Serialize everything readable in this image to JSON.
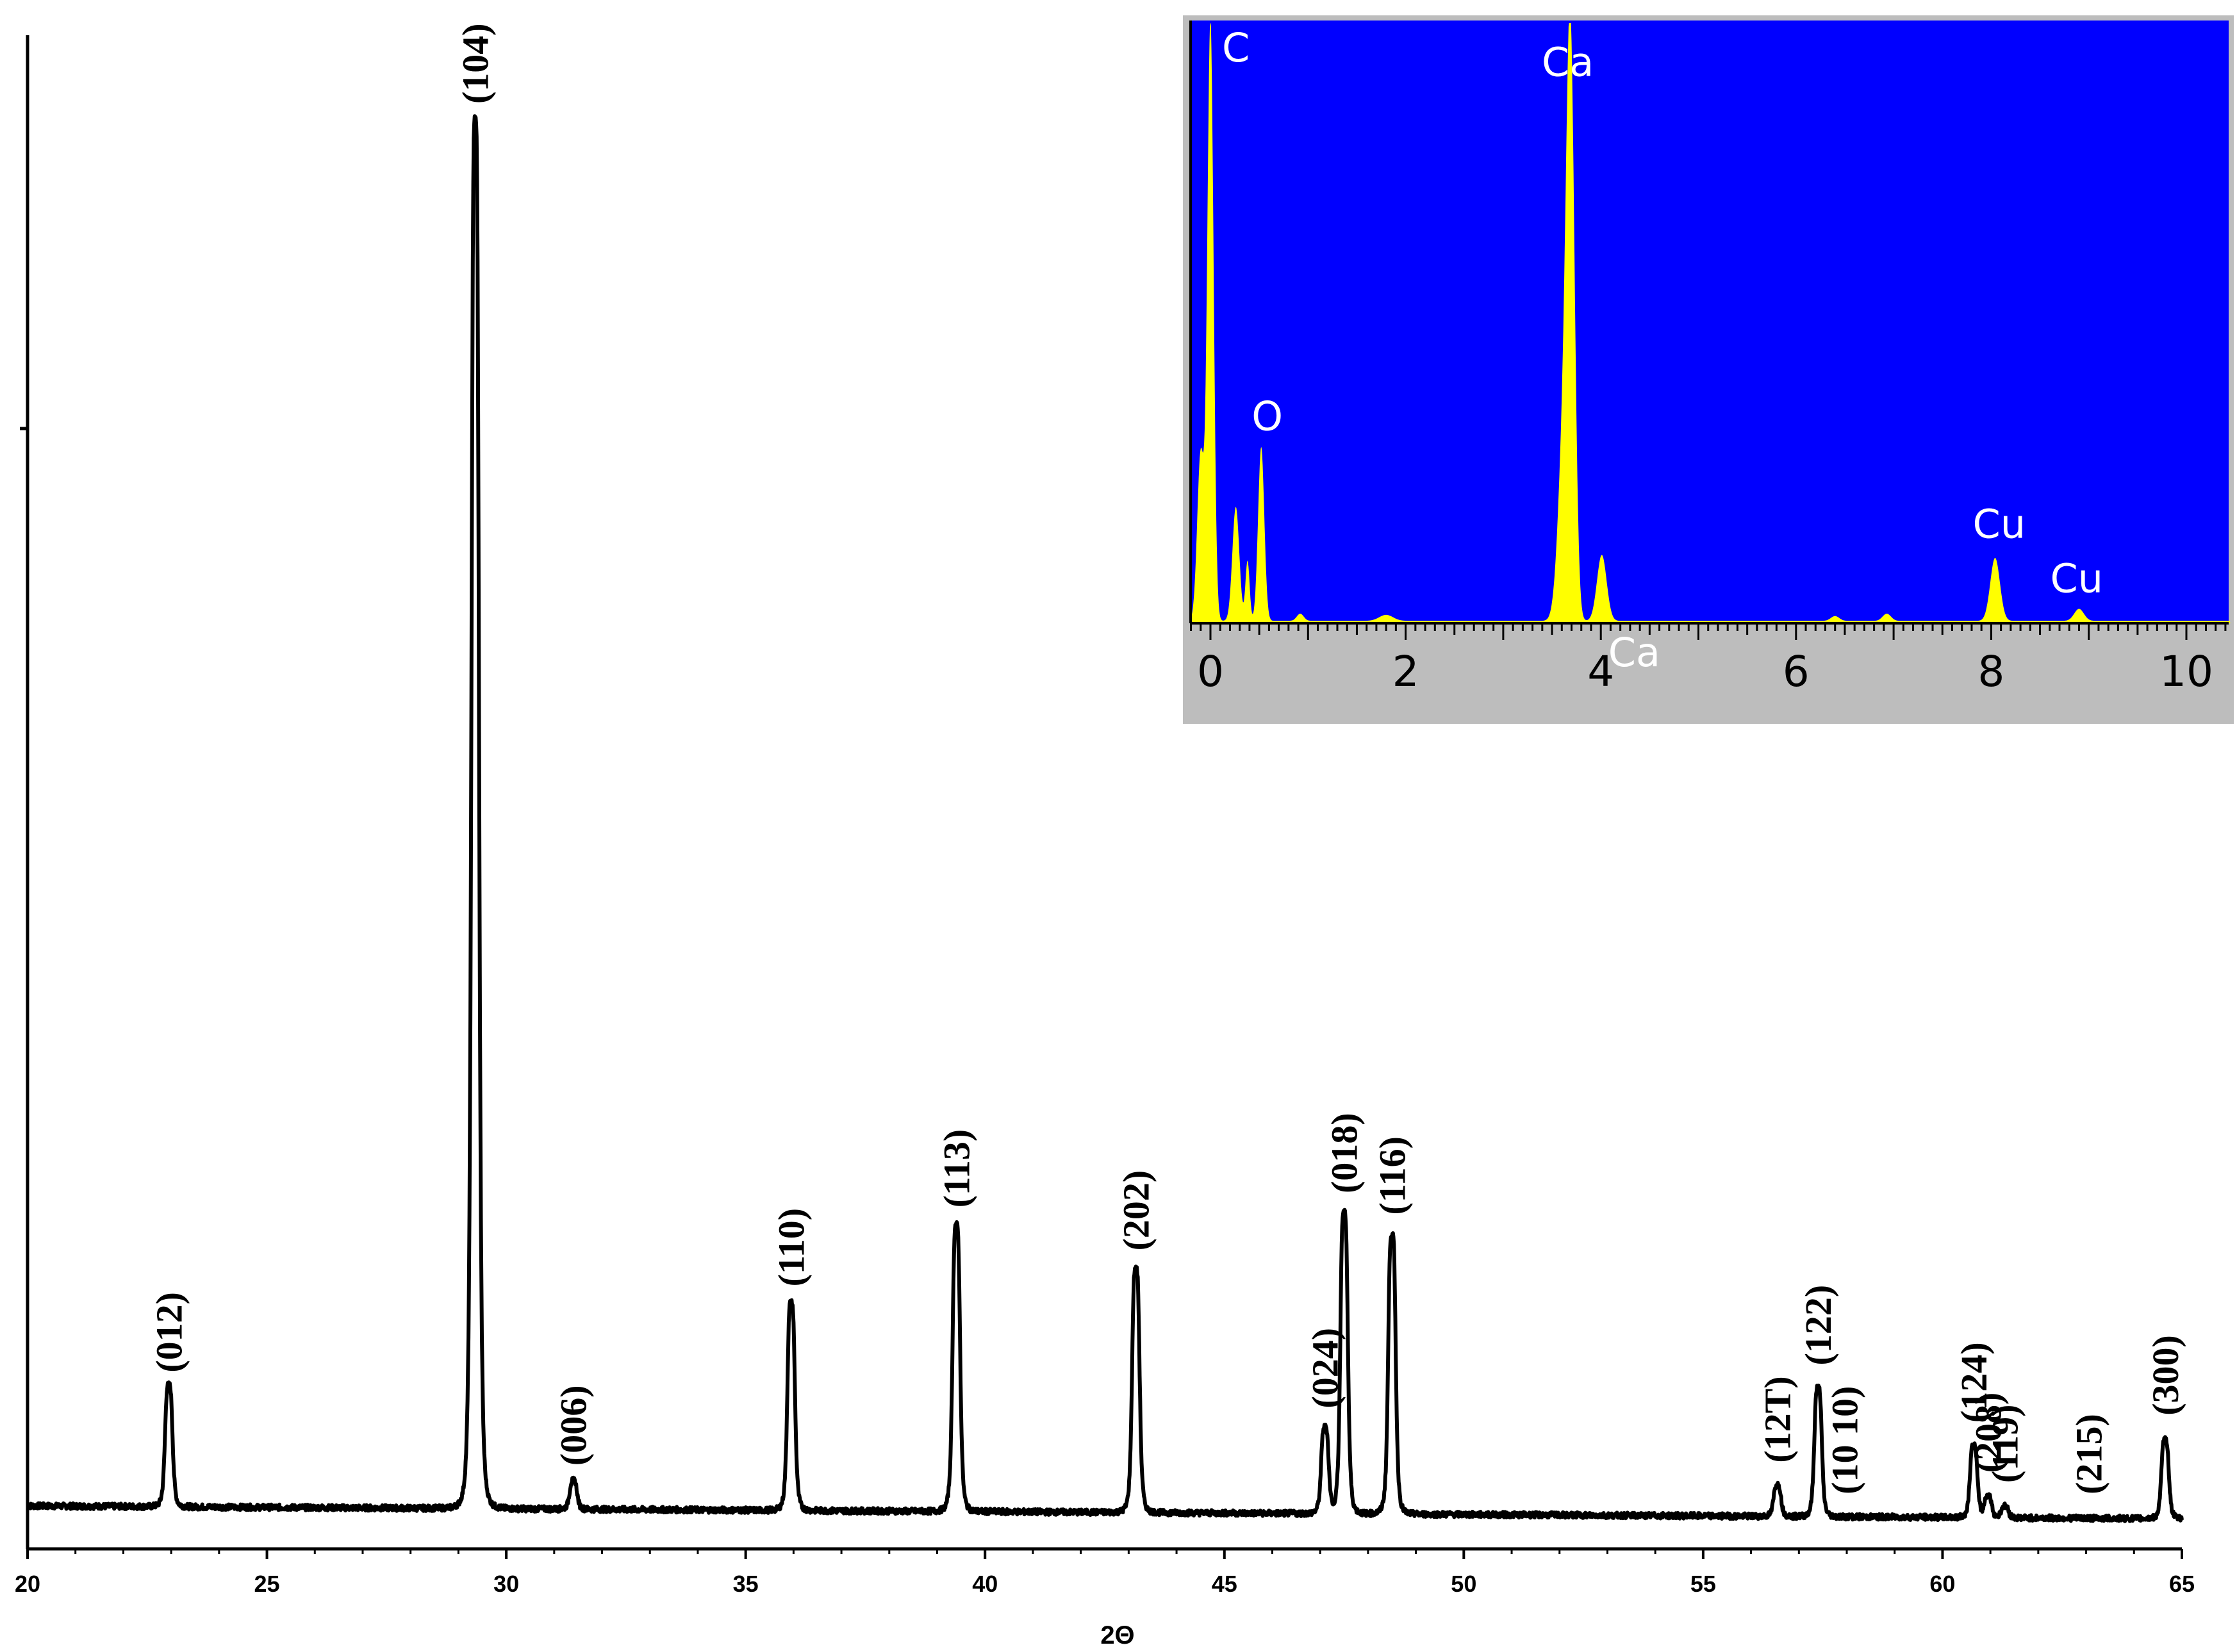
{
  "chart_data": [
    {
      "type": "line",
      "xlabel": "2Θ",
      "ylabel": "",
      "xlim": [
        20,
        65
      ],
      "ylim": [
        0,
        1.0
      ],
      "x_ticks": [
        20,
        25,
        30,
        35,
        40,
        45,
        50,
        55,
        60,
        65
      ],
      "baseline": 0.03,
      "peaks": [
        {
          "x": 22.95,
          "y": 0.115,
          "label": "(012)"
        },
        {
          "x": 29.35,
          "y": 1.0,
          "label": "(104)"
        },
        {
          "x": 31.4,
          "y": 0.05,
          "label": "(006)"
        },
        {
          "x": 35.95,
          "y": 0.175,
          "label": "(110)"
        },
        {
          "x": 39.4,
          "y": 0.23,
          "label": "(113)"
        },
        {
          "x": 43.15,
          "y": 0.2,
          "label": "(202)"
        },
        {
          "x": 47.1,
          "y": 0.09,
          "label": "(024)"
        },
        {
          "x": 47.5,
          "y": 0.24,
          "label": "(018)"
        },
        {
          "x": 48.5,
          "y": 0.225,
          "label": "(116)"
        },
        {
          "x": 56.55,
          "y": 0.052,
          "label": "(12T)"
        },
        {
          "x": 57.4,
          "y": 0.12,
          "label": "(122)"
        },
        {
          "x": 57.95,
          "y": 0.03,
          "label": "(10 10)"
        },
        {
          "x": 60.65,
          "y": 0.08,
          "label": "(124)"
        },
        {
          "x": 60.95,
          "y": 0.045,
          "label": "(208)"
        },
        {
          "x": 61.3,
          "y": 0.038,
          "label": "(119)"
        },
        {
          "x": 63.05,
          "y": 0.03,
          "label": "(215)"
        },
        {
          "x": 64.65,
          "y": 0.085,
          "label": "(300)"
        }
      ]
    },
    {
      "type": "area",
      "title": "",
      "xlim": [
        -0.25,
        10.5
      ],
      "ylim": [
        0,
        1.0
      ],
      "x_ticks": [
        0,
        2,
        4,
        6,
        8,
        10
      ],
      "colors": {
        "background": "#0000ff",
        "fill": "#ffff00",
        "frame": "#bdbdbd"
      },
      "peaks": [
        {
          "x": 0.0,
          "y": 1.0,
          "label": "C"
        },
        {
          "x": 0.52,
          "y": 0.29,
          "label": "O"
        },
        {
          "x": 3.69,
          "y": 0.88,
          "label": "Ca"
        },
        {
          "x": 4.01,
          "y": 0.11,
          "label": "Ca"
        },
        {
          "x": 8.04,
          "y": 0.105,
          "label": "Cu"
        },
        {
          "x": 8.9,
          "y": 0.02,
          "label": "Cu"
        }
      ]
    }
  ]
}
